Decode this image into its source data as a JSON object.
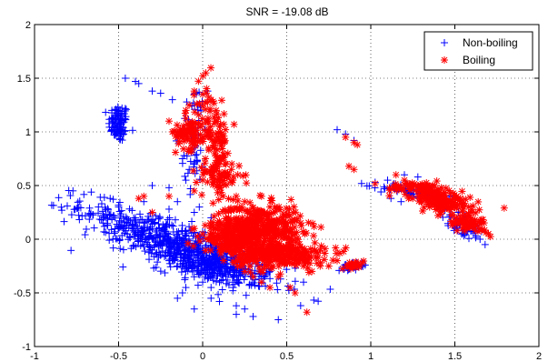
{
  "chart_data": {
    "type": "scatter",
    "title": "SNR = -19.08 dB",
    "xlabel": "",
    "ylabel": "",
    "xlim": [
      -1,
      2
    ],
    "ylim": [
      -1,
      2
    ],
    "x_ticks": [
      -1,
      -0.5,
      0,
      0.5,
      1,
      1.5,
      2
    ],
    "y_ticks": [
      -1,
      -0.5,
      0,
      0.5,
      1,
      1.5,
      2
    ],
    "x_tick_labels": [
      "-1",
      "-0.5",
      "0",
      "0.5",
      "1",
      "1.5",
      "2"
    ],
    "y_tick_labels": [
      "-1",
      "-0.5",
      "0",
      "0.5",
      "1",
      "1.5",
      "2"
    ],
    "grid": true,
    "legend_position": "top-right",
    "series": [
      {
        "name": "Non-boiling",
        "marker": "plus",
        "color": "#0000ff",
        "points": [
          [
            -0.5,
            1.15
          ],
          [
            -0.53,
            1.1
          ],
          [
            -0.49,
            1.05
          ],
          [
            -0.52,
            1.0
          ],
          [
            -0.47,
            0.98
          ],
          [
            -0.51,
            1.2
          ],
          [
            -0.48,
            1.12
          ],
          [
            -0.46,
            1.5
          ],
          [
            -0.4,
            1.47
          ],
          [
            -0.38,
            1.45
          ],
          [
            -0.3,
            1.38
          ],
          [
            -0.25,
            1.36
          ],
          [
            -0.18,
            1.3
          ],
          [
            -0.55,
            0.38
          ],
          [
            -0.62,
            0.3
          ],
          [
            -0.5,
            0.3
          ],
          [
            -0.35,
            0.35
          ],
          [
            -0.3,
            0.5
          ],
          [
            -0.2,
            0.48
          ],
          [
            -0.15,
            0.35
          ],
          [
            -0.1,
            0.55
          ],
          [
            -0.08,
            0.65
          ],
          [
            -0.05,
            0.7
          ],
          [
            -0.12,
            0.75
          ],
          [
            -0.05,
            0.85
          ],
          [
            0.0,
            1.35
          ],
          [
            0.03,
            1.38
          ],
          [
            -0.45,
            0.15
          ],
          [
            -0.42,
            0.1
          ],
          [
            -0.4,
            0.05
          ],
          [
            -0.38,
            0.0
          ],
          [
            -0.35,
            -0.05
          ],
          [
            -0.3,
            -0.1
          ],
          [
            -0.25,
            -0.15
          ],
          [
            -0.2,
            -0.2
          ],
          [
            -0.15,
            -0.25
          ],
          [
            -0.1,
            -0.3
          ],
          [
            -0.05,
            -0.35
          ],
          [
            0.0,
            -0.4
          ],
          [
            0.05,
            -0.45
          ],
          [
            0.1,
            -0.4
          ],
          [
            -0.4,
            0.2
          ],
          [
            -0.35,
            0.15
          ],
          [
            -0.3,
            0.1
          ],
          [
            -0.25,
            0.05
          ],
          [
            -0.2,
            0.0
          ],
          [
            -0.15,
            -0.05
          ],
          [
            -0.1,
            -0.1
          ],
          [
            -0.05,
            -0.15
          ],
          [
            0.0,
            -0.2
          ],
          [
            0.05,
            -0.25
          ],
          [
            0.1,
            -0.3
          ],
          [
            0.15,
            -0.28
          ],
          [
            0.2,
            -0.25
          ],
          [
            0.25,
            -0.3
          ],
          [
            -0.48,
            0.12
          ],
          [
            -0.44,
            0.18
          ],
          [
            -0.32,
            0.18
          ],
          [
            -0.22,
            0.12
          ],
          [
            -0.12,
            0.08
          ],
          [
            -0.02,
            0.02
          ],
          [
            0.08,
            -0.1
          ],
          [
            -0.1,
            -0.45
          ],
          [
            -0.12,
            -0.5
          ],
          [
            -0.15,
            -0.55
          ],
          [
            0.05,
            -0.55
          ],
          [
            0.1,
            -0.58
          ],
          [
            0.2,
            -0.62
          ],
          [
            0.25,
            -0.65
          ],
          [
            0.3,
            -0.72
          ],
          [
            0.2,
            -0.7
          ],
          [
            -0.05,
            -0.65
          ],
          [
            0.18,
            -0.48
          ],
          [
            0.28,
            -0.42
          ],
          [
            0.35,
            -0.35
          ],
          [
            0.4,
            -0.3
          ],
          [
            0.45,
            -0.75
          ],
          [
            0.6,
            -0.4
          ],
          [
            0.05,
            0.2
          ],
          [
            -0.02,
            0.3
          ],
          [
            -0.05,
            0.25
          ],
          [
            -0.2,
            0.28
          ],
          [
            -0.28,
            0.22
          ],
          [
            0.8,
            1.02
          ],
          [
            0.85,
            0.98
          ],
          [
            0.9,
            0.92
          ],
          [
            0.84,
            -0.28
          ],
          [
            0.88,
            -0.26
          ],
          [
            0.92,
            -0.24
          ],
          [
            0.95,
            -0.22
          ],
          [
            1.1,
            0.55
          ],
          [
            1.15,
            0.5
          ],
          [
            1.2,
            0.45
          ],
          [
            1.25,
            0.4
          ],
          [
            1.28,
            0.58
          ],
          [
            1.35,
            0.48
          ],
          [
            1.4,
            0.42
          ],
          [
            1.5,
            0.3
          ],
          [
            1.55,
            0.2
          ],
          [
            1.6,
            0.15
          ],
          [
            1.62,
            0.08
          ],
          [
            1.65,
            0.0
          ],
          [
            1.68,
            -0.05
          ],
          [
            1.58,
            0.1
          ],
          [
            1.45,
            0.3
          ],
          [
            1.52,
            0.25
          ],
          [
            1.2,
            0.6
          ],
          [
            1.12,
            0.38
          ],
          [
            1.18,
            0.35
          ]
        ],
        "clusters": [
          {
            "cx": -0.5,
            "cy": 1.08,
            "sx": 0.03,
            "sy": 0.09,
            "n": 90,
            "angle": 0.0
          },
          {
            "cx": -0.15,
            "cy": -0.05,
            "sx": 0.33,
            "sy": 0.09,
            "n": 650,
            "angle": -0.55
          },
          {
            "cx": 0.05,
            "cy": -0.25,
            "sx": 0.15,
            "sy": 0.07,
            "n": 200,
            "angle": -0.35
          },
          {
            "cx": 1.25,
            "cy": 0.45,
            "sx": 0.1,
            "sy": 0.03,
            "n": 70,
            "angle": -0.2
          },
          {
            "cx": 1.55,
            "cy": 0.12,
            "sx": 0.09,
            "sy": 0.04,
            "n": 60,
            "angle": -0.7
          },
          {
            "cx": 0.9,
            "cy": -0.25,
            "sx": 0.04,
            "sy": 0.02,
            "n": 30,
            "angle": 0.4
          },
          {
            "cx": -0.05,
            "cy": 0.95,
            "sx": 0.04,
            "sy": 0.25,
            "n": 50,
            "angle": 0.0
          }
        ]
      },
      {
        "name": "Boiling",
        "marker": "asterisk",
        "color": "#ff0000",
        "points": [
          [
            -0.05,
            1.38
          ],
          [
            0.0,
            1.35
          ],
          [
            0.05,
            1.3
          ],
          [
            0.08,
            1.2
          ],
          [
            0.1,
            1.05
          ],
          [
            0.12,
            0.9
          ],
          [
            0.15,
            0.8
          ],
          [
            -0.2,
            1.1
          ],
          [
            -0.18,
            1.0
          ],
          [
            -0.15,
            0.95
          ],
          [
            -0.1,
            1.2
          ],
          [
            -0.08,
            1.25
          ],
          [
            0.05,
            0.65
          ],
          [
            0.1,
            0.6
          ],
          [
            0.18,
            0.55
          ],
          [
            0.2,
            0.4
          ],
          [
            0.25,
            0.35
          ],
          [
            0.0,
            0.55
          ],
          [
            -0.05,
            0.45
          ],
          [
            -0.2,
            0.4
          ],
          [
            -0.35,
            0.4
          ],
          [
            -0.38,
            0.38
          ],
          [
            -0.3,
            0.25
          ],
          [
            0.35,
            0.4
          ],
          [
            0.4,
            0.3
          ],
          [
            0.5,
            0.1
          ],
          [
            0.55,
            0.05
          ],
          [
            0.5,
            -0.1
          ],
          [
            0.55,
            -0.2
          ],
          [
            0.6,
            -0.25
          ],
          [
            0.45,
            -0.35
          ],
          [
            0.52,
            -0.45
          ],
          [
            0.55,
            -0.5
          ],
          [
            0.62,
            -0.68
          ],
          [
            0.35,
            -0.4
          ],
          [
            0.3,
            -0.35
          ],
          [
            0.25,
            -0.3
          ],
          [
            0.4,
            -0.45
          ],
          [
            0.1,
            -0.1
          ],
          [
            0.05,
            0.0
          ],
          [
            0.0,
            0.05
          ],
          [
            -0.05,
            0.1
          ],
          [
            0.15,
            0.15
          ],
          [
            0.2,
            0.1
          ],
          [
            0.3,
            0.2
          ],
          [
            0.38,
            -0.15
          ],
          [
            0.42,
            -0.25
          ],
          [
            0.28,
            -0.25
          ],
          [
            0.7,
            -0.22
          ],
          [
            0.8,
            -0.2
          ],
          [
            0.65,
            -0.3
          ],
          [
            0.75,
            -0.25
          ],
          [
            0.85,
            0.95
          ],
          [
            0.9,
            0.9
          ],
          [
            0.92,
            0.88
          ],
          [
            0.87,
            0.68
          ],
          [
            0.9,
            0.65
          ],
          [
            0.88,
            -0.25
          ],
          [
            0.95,
            -0.22
          ],
          [
            1.15,
            0.6
          ],
          [
            1.2,
            0.55
          ],
          [
            1.28,
            0.5
          ],
          [
            1.35,
            0.45
          ],
          [
            1.4,
            0.4
          ],
          [
            1.45,
            0.35
          ],
          [
            1.5,
            0.3
          ],
          [
            1.55,
            0.28
          ],
          [
            1.6,
            0.25
          ],
          [
            1.62,
            0.15
          ],
          [
            1.65,
            0.1
          ],
          [
            1.7,
            0.05
          ],
          [
            1.38,
            0.5
          ],
          [
            1.42,
            0.48
          ],
          [
            1.3,
            0.35
          ],
          [
            1.35,
            0.3
          ],
          [
            1.25,
            0.38
          ]
        ],
        "clusters": [
          {
            "cx": -0.08,
            "cy": 1.0,
            "sx": 0.04,
            "sy": 0.08,
            "n": 80,
            "angle": 0.0
          },
          {
            "cx": 0.07,
            "cy": 0.95,
            "sx": 0.04,
            "sy": 0.25,
            "n": 110,
            "angle": 0.1
          },
          {
            "cx": 0.1,
            "cy": 0.6,
            "sx": 0.07,
            "sy": 0.06,
            "n": 60,
            "angle": 0.0
          },
          {
            "cx": 0.33,
            "cy": 0.12,
            "sx": 0.13,
            "sy": 0.1,
            "n": 420,
            "angle": 0.0
          },
          {
            "cx": 0.45,
            "cy": -0.15,
            "sx": 0.14,
            "sy": 0.06,
            "n": 280,
            "angle": 0.0
          },
          {
            "cx": 0.2,
            "cy": -0.02,
            "sx": 0.1,
            "sy": 0.06,
            "n": 150,
            "angle": -0.3
          },
          {
            "cx": 1.28,
            "cy": 0.48,
            "sx": 0.08,
            "sy": 0.025,
            "n": 60,
            "angle": -0.1
          },
          {
            "cx": 1.42,
            "cy": 0.35,
            "sx": 0.1,
            "sy": 0.05,
            "n": 160,
            "angle": -0.45
          },
          {
            "cx": 1.58,
            "cy": 0.15,
            "sx": 0.06,
            "sy": 0.04,
            "n": 60,
            "angle": -0.8
          },
          {
            "cx": 0.9,
            "cy": -0.24,
            "sx": 0.03,
            "sy": 0.015,
            "n": 25,
            "angle": 0.4
          }
        ]
      }
    ]
  }
}
